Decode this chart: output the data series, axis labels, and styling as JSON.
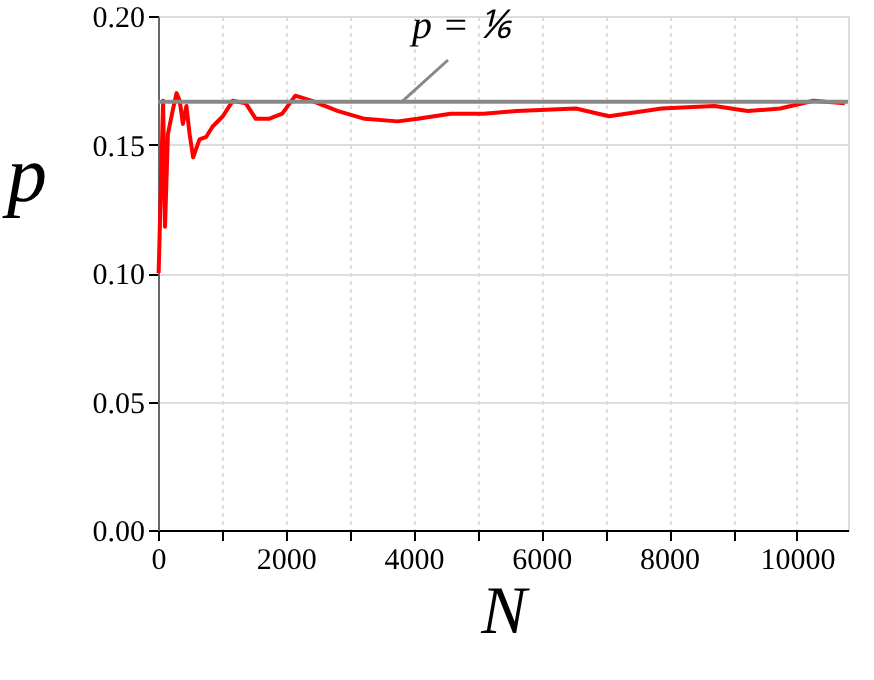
{
  "chart_data": {
    "type": "line",
    "xlabel": "N",
    "ylabel": "p",
    "x": [
      10,
      80,
      110,
      155,
      220,
      290,
      340,
      390,
      445,
      495,
      550,
      650,
      755,
      855,
      1015,
      1170,
      1375,
      1530,
      1735,
      1945,
      2150,
      2410,
      2820,
      3235,
      3750,
      4065,
      4580,
      5100,
      5610,
      6540,
      7060,
      7880,
      8710,
      9230,
      9740,
      10260,
      10750
    ],
    "series": [
      {
        "color": "#ff0000",
        "values": [
          0.1,
          0.167,
          0.118,
          0.154,
          0.162,
          0.17,
          0.167,
          0.158,
          0.165,
          0.154,
          0.145,
          0.152,
          0.153,
          0.157,
          0.161,
          0.167,
          0.166,
          0.16,
          0.16,
          0.162,
          0.169,
          0.167,
          0.163,
          0.16,
          0.159,
          0.16,
          0.162,
          0.162,
          0.163,
          0.164,
          0.161,
          0.164,
          0.165,
          0.163,
          0.164,
          0.167,
          0.166
        ]
      }
    ],
    "xlim": [
      0,
      10800
    ],
    "xticks": [
      0,
      {
        "value": 1000,
        "label": null
      },
      2000,
      {
        "value": 3000,
        "label": null
      },
      4000,
      {
        "value": 5000,
        "label": null
      },
      6000,
      {
        "value": 7000,
        "label": null
      },
      8000,
      {
        "value": 9000,
        "label": null
      },
      10000
    ],
    "ylim": [
      0,
      0.2
    ],
    "yticks": [
      {
        "value": 0,
        "label": "0.00"
      },
      {
        "value": 0.05,
        "label": "0.05"
      },
      {
        "value": 0.1,
        "label": "0.10"
      },
      {
        "value": 0.15,
        "label": "0.15"
      },
      {
        "value": 0.2,
        "label": "0.20"
      }
    ],
    "ref_lines": [
      {
        "axis": "y",
        "value": 0.16667,
        "label": "p = ⅙",
        "color": "#888888"
      }
    ],
    "grid": true,
    "line_style": "solid",
    "marker": "none"
  }
}
